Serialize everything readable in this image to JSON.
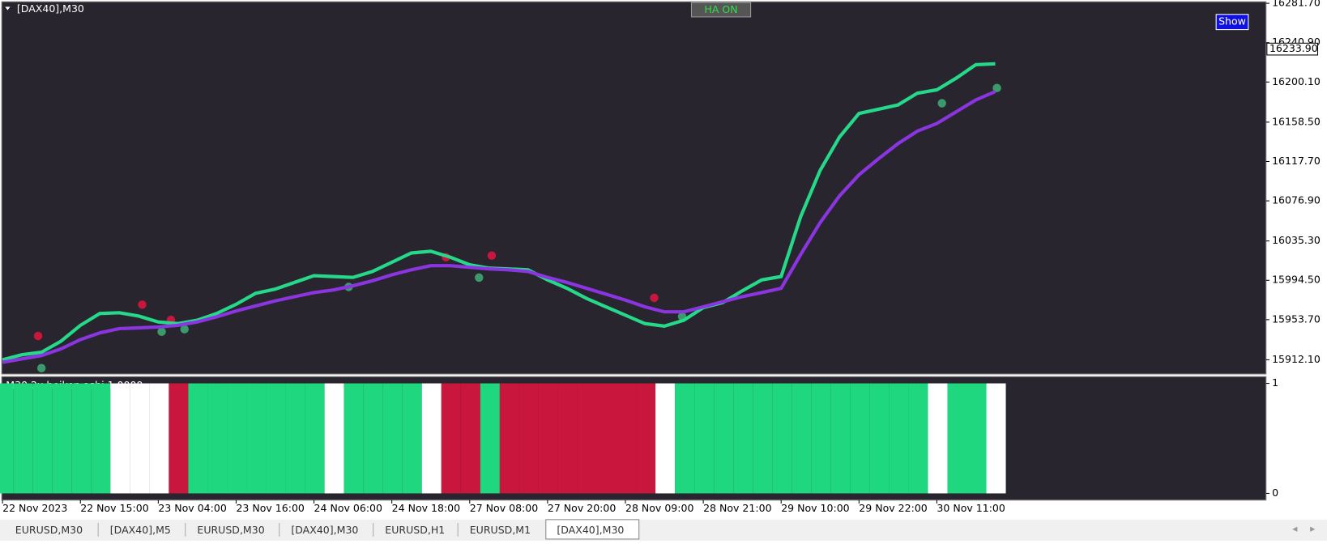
{
  "window": {
    "symbol_label": "[DAX40],M30",
    "ha_button": "HA ON",
    "show_button": "Show",
    "current_price": "16233.90",
    "indicator_label": "M30 2x heiken ashi 1.0000"
  },
  "tabs": [
    "EURUSD,M30",
    "[DAX40],M5",
    "EURUSD,M30",
    "[DAX40],M30",
    "EURUSD,H1",
    "EURUSD,M1",
    "[DAX40],M30"
  ],
  "active_tab": 6,
  "chart_data": [
    {
      "type": "line",
      "categories": [
        "22 Nov 2023",
        null,
        null,
        null,
        "22 Nov 15:00",
        null,
        null,
        null,
        "23 Nov 04:00",
        null,
        null,
        null,
        "23 Nov 16:00",
        null,
        null,
        null,
        "24 Nov 06:00",
        null,
        null,
        null,
        "24 Nov 18:00",
        null,
        null,
        null,
        "27 Nov 08:00",
        null,
        null,
        null,
        "27 Nov 20:00",
        null,
        null,
        null,
        "28 Nov 09:00",
        null,
        null,
        null,
        "28 Nov 21:00",
        null,
        null,
        null,
        "29 Nov 10:00",
        null,
        null,
        null,
        "29 Nov 22:00",
        null,
        null,
        null,
        "30 Nov 11:00",
        null,
        null,
        null
      ],
      "series": [
        {
          "color": "#26d98a",
          "values": [
            15912.1,
            15917.3,
            15919.9,
            15931.3,
            15947.8,
            15960.1,
            15960.9,
            15957.4,
            15951.3,
            15949.6,
            15953.1,
            15960.1,
            15969.6,
            15981.0,
            15985.3,
            15992.3,
            15999.3,
            15998.4,
            15997.5,
            16003.6,
            16013.2,
            16022.8,
            16024.6,
            16018.5,
            16010.6,
            16007.1,
            16006.3,
            16005.4,
            15994.9,
            15986.2,
            15975.7,
            15967.0,
            15958.3,
            15949.6,
            15947.0,
            15953.1,
            15966.2,
            15971.4,
            15983.6,
            15994.9,
            15998.4,
            16060.3,
            16108.3,
            16143.1,
            16167.5,
            16171.9,
            16176.3,
            16188.5,
            16192.0,
            16204.2,
            16218.1,
            16219.0
          ]
        },
        {
          "color": "#8a35e0",
          "values": [
            15909.5,
            15913.0,
            15916.5,
            15923.4,
            15933.0,
            15940.0,
            15944.4,
            15945.2,
            15946.1,
            15947.8,
            15951.3,
            15956.6,
            15962.7,
            15967.9,
            15973.1,
            15977.5,
            15981.8,
            15984.5,
            15988.8,
            15994.0,
            16000.2,
            16005.4,
            16009.7,
            16009.7,
            16008.0,
            16006.3,
            16005.4,
            16003.6,
            15997.5,
            15992.3,
            15986.2,
            15980.1,
            15974.0,
            15967.0,
            15961.8,
            15961.8,
            15967.0,
            15972.3,
            15977.5,
            15981.8,
            15986.2,
            16021.1,
            16054.2,
            16082.1,
            16103.9,
            16120.5,
            16136.2,
            16149.2,
            16157.1,
            16169.3,
            16181.5,
            16190.2
          ]
        }
      ],
      "ylim": [
        15897.3,
        16283.4
      ],
      "yticks": [
        {
          "value": 16281.7,
          "label": "16281.70"
        },
        {
          "value": 16240.9,
          "label": "16240.90"
        },
        {
          "value": 16200.1,
          "label": "16200.10"
        },
        {
          "value": 16158.5,
          "label": "16158.50"
        },
        {
          "value": 16117.7,
          "label": "16117.70"
        },
        {
          "value": 16076.9,
          "label": "16076.90"
        },
        {
          "value": 16035.3,
          "label": "16035.30"
        },
        {
          "value": 15994.5,
          "label": "15994.50"
        },
        {
          "value": 15953.7,
          "label": "15953.70"
        },
        {
          "value": 15912.1,
          "label": "15912.10"
        }
      ]
    },
    {
      "type": "bar",
      "values": [
        1,
        1,
        1,
        1,
        1,
        1,
        1,
        1,
        1,
        1,
        1,
        1,
        1,
        1,
        1,
        1,
        1,
        1,
        1,
        1,
        1,
        1,
        1,
        1,
        1,
        1,
        1,
        1,
        1,
        1,
        1,
        1,
        1,
        1,
        1,
        1,
        1,
        1,
        1,
        1,
        1,
        1,
        1,
        1,
        1,
        1,
        1,
        1,
        1,
        1,
        1,
        1
      ],
      "colors": [
        "#1fd77f",
        "#1fd77f",
        "#1fd77f",
        "#1fd77f",
        "#1fd77f",
        "#1fd77f",
        "#ffffff",
        "#ffffff",
        "#ffffff",
        "#c8163c",
        "#1fd77f",
        "#1fd77f",
        "#1fd77f",
        "#1fd77f",
        "#1fd77f",
        "#1fd77f",
        "#1fd77f",
        "#ffffff",
        "#1fd77f",
        "#1fd77f",
        "#1fd77f",
        "#1fd77f",
        "#ffffff",
        "#c8163c",
        "#c8163c",
        "#1fd77f",
        "#c8163c",
        "#c8163c",
        "#c8163c",
        "#c8163c",
        "#c8163c",
        "#c8163c",
        "#c8163c",
        "#c8163c",
        "#ffffff",
        "#1fd77f",
        "#1fd77f",
        "#1fd77f",
        "#1fd77f",
        "#1fd77f",
        "#1fd77f",
        "#1fd77f",
        "#1fd77f",
        "#1fd77f",
        "#1fd77f",
        "#1fd77f",
        "#1fd77f",
        "#1fd77f",
        "#ffffff",
        "#1fd77f",
        "#1fd77f",
        "#ffffff"
      ],
      "ylim": [
        0,
        1
      ],
      "yticks": [
        1,
        0
      ]
    }
  ]
}
